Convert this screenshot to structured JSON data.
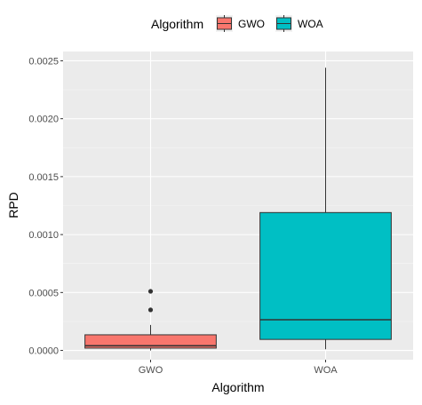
{
  "chart_data": {
    "type": "boxplot",
    "xlabel": "Algorithm",
    "ylabel": "RPD",
    "categories": [
      "GWO",
      "WOA"
    ],
    "ylim": [
      -8e-05,
      0.00258
    ],
    "yticks": [
      0.0,
      0.0005,
      0.001,
      0.0015,
      0.002,
      0.0025
    ],
    "ytick_labels": [
      "0.0000",
      "0.0005",
      "0.0010",
      "0.0015",
      "0.0020",
      "0.0025"
    ],
    "legend": {
      "title": "Algorithm",
      "position": "top",
      "entries": [
        "GWO",
        "WOA"
      ]
    },
    "grid": true,
    "series": [
      {
        "name": "GWO",
        "color": "#F8766D",
        "min": 0.0,
        "q1": 2e-05,
        "median": 4e-05,
        "q3": 0.000135,
        "max": 0.00022,
        "outliers": [
          0.00035,
          0.00051
        ]
      },
      {
        "name": "WOA",
        "color": "#00BFC4",
        "min": 1e-05,
        "q1": 9.5e-05,
        "median": 0.000265,
        "q3": 0.00119,
        "max": 0.00244,
        "outliers": []
      }
    ]
  }
}
